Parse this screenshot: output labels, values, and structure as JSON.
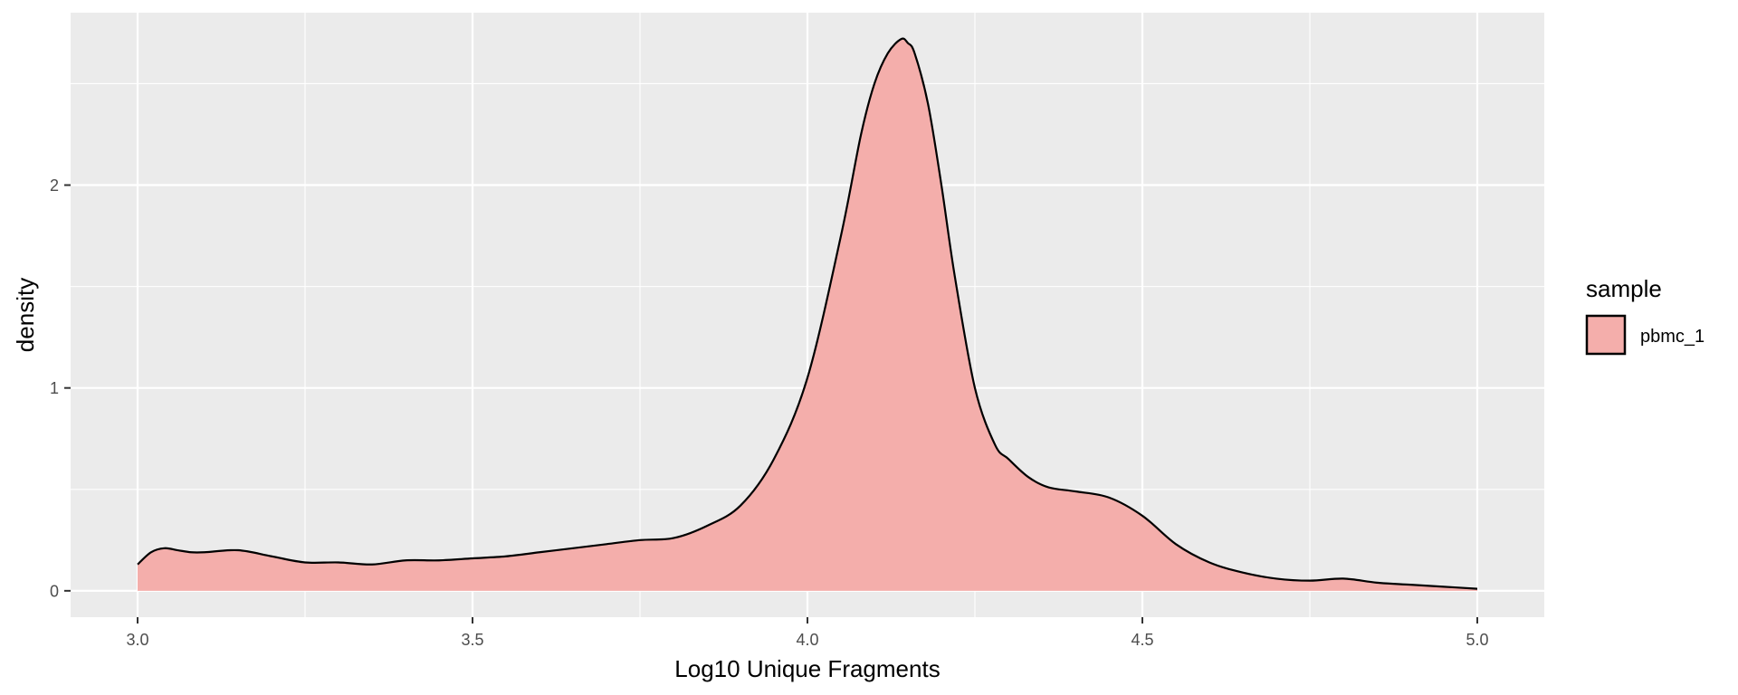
{
  "chart_data": {
    "type": "area",
    "title": "",
    "xlabel": "Log10 Unique Fragments",
    "ylabel": "density",
    "xlim": [
      2.9,
      5.1
    ],
    "ylim": [
      -0.13,
      2.85
    ],
    "x_ticks": [
      "3.0",
      "3.5",
      "4.0",
      "4.5",
      "5.0"
    ],
    "y_ticks": [
      "0",
      "1",
      "2"
    ],
    "x_tick_values": [
      3.0,
      3.5,
      4.0,
      4.5,
      5.0
    ],
    "y_tick_values": [
      0,
      1,
      2
    ],
    "grid": true,
    "legend": {
      "title": "sample",
      "position": "right"
    },
    "series": [
      {
        "name": "pbmc_1",
        "fill_color": "#f4aeab",
        "line_color": "#000000",
        "x": [
          3.0,
          3.02,
          3.04,
          3.06,
          3.08,
          3.1,
          3.15,
          3.2,
          3.25,
          3.3,
          3.35,
          3.4,
          3.45,
          3.5,
          3.55,
          3.6,
          3.65,
          3.7,
          3.75,
          3.8,
          3.85,
          3.9,
          3.95,
          4.0,
          4.05,
          4.08,
          4.1,
          4.12,
          4.14,
          4.15,
          4.16,
          4.18,
          4.2,
          4.22,
          4.25,
          4.28,
          4.3,
          4.33,
          4.36,
          4.4,
          4.45,
          4.5,
          4.55,
          4.6,
          4.65,
          4.7,
          4.75,
          4.8,
          4.85,
          4.9,
          4.95,
          5.0
        ],
        "y": [
          0.13,
          0.19,
          0.21,
          0.2,
          0.19,
          0.19,
          0.2,
          0.17,
          0.14,
          0.14,
          0.13,
          0.15,
          0.15,
          0.16,
          0.17,
          0.19,
          0.21,
          0.23,
          0.25,
          0.26,
          0.32,
          0.42,
          0.65,
          1.05,
          1.75,
          2.25,
          2.5,
          2.65,
          2.72,
          2.7,
          2.65,
          2.4,
          2.0,
          1.55,
          1.0,
          0.72,
          0.65,
          0.56,
          0.51,
          0.49,
          0.46,
          0.37,
          0.23,
          0.14,
          0.09,
          0.06,
          0.05,
          0.06,
          0.04,
          0.03,
          0.02,
          0.01
        ]
      }
    ]
  }
}
